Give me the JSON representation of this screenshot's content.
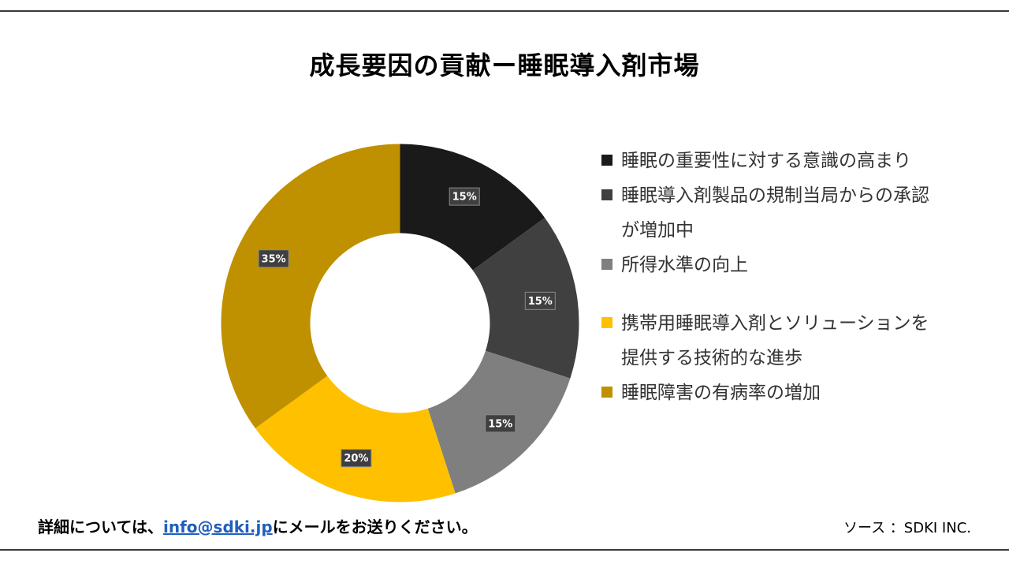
{
  "title": "成長要因の貢献ー睡眠導入剤市場",
  "chart_data": {
    "type": "pie",
    "title": "成長要因の貢献ー睡眠導入剤市場",
    "donut": true,
    "legend_position": "right",
    "categories": [
      "睡眠の重要性に対する意識の高まり",
      "睡眠導入剤製品の規制当局からの承認が増加中",
      "所得水準の向上",
      "携帯用睡眠導入剤とソリューションを提供する技術的な進歩",
      "睡眠障害の有病率の増加"
    ],
    "values": [
      15,
      15,
      15,
      20,
      35
    ],
    "data_labels": [
      "15%",
      "15%",
      "15%",
      "20%",
      "35%"
    ],
    "colors": [
      "#1a1a1a",
      "#404040",
      "#7f7f7f",
      "#ffc000",
      "#bf9000"
    ]
  },
  "footer": {
    "contact_prefix": "詳細については、",
    "email": "info@sdki.jp",
    "contact_suffix": "にメールをお送りください。",
    "source": "ソース ：SDKI INC."
  }
}
